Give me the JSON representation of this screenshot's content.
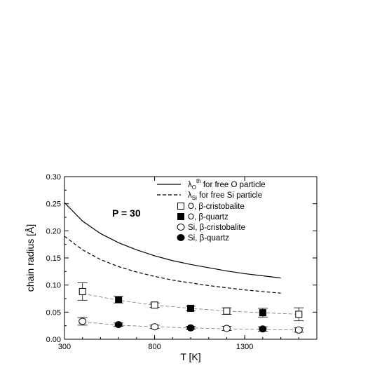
{
  "chart_data": {
    "type": "scatter",
    "xlabel": "T [K]",
    "ylabel": "chain radius [Å]",
    "xlim": [
      300,
      1700
    ],
    "ylim": [
      0.0,
      0.3
    ],
    "xticks": [
      {
        "value": 300,
        "label": "300"
      },
      {
        "value": 800,
        "label": "800"
      },
      {
        "value": 1300,
        "label": "1300"
      }
    ],
    "yticks": [
      {
        "value": 0.0,
        "label": "0.00"
      },
      {
        "value": 0.05,
        "label": "0.05"
      },
      {
        "value": 0.1,
        "label": "0.10"
      },
      {
        "value": 0.15,
        "label": "0.15"
      },
      {
        "value": 0.2,
        "label": "0.20"
      },
      {
        "value": 0.25,
        "label": "0.25"
      },
      {
        "value": 0.3,
        "label": "0.30"
      }
    ],
    "annotation": "P = 30",
    "legend_position": "top-right",
    "series": [
      {
        "name": "for free O particle",
        "lambda_sub": "O",
        "lambda_sup": "th",
        "kind": "line",
        "dash": "solid",
        "x": [
          300,
          400,
          500,
          600,
          700,
          800,
          900,
          1000,
          1100,
          1200,
          1300,
          1400,
          1500
        ],
        "y": [
          0.252,
          0.218,
          0.195,
          0.178,
          0.165,
          0.154,
          0.145,
          0.138,
          0.132,
          0.126,
          0.121,
          0.117,
          0.113
        ]
      },
      {
        "name": "for free Si particle",
        "lambda_sub": "Si",
        "lambda_sup": "",
        "kind": "line",
        "dash": "dashed",
        "x": [
          300,
          400,
          500,
          600,
          700,
          800,
          900,
          1000,
          1100,
          1200,
          1300,
          1400,
          1500
        ],
        "y": [
          0.19,
          0.165,
          0.147,
          0.134,
          0.124,
          0.116,
          0.109,
          0.104,
          0.099,
          0.095,
          0.091,
          0.088,
          0.085
        ]
      },
      {
        "name": "O, β-cristobalite",
        "kind": "marker",
        "marker": "square-open",
        "x": [
          400,
          800,
          1200,
          1600
        ],
        "y": [
          0.088,
          0.063,
          0.052,
          0.046
        ],
        "err": [
          0.016,
          0.004,
          0.006,
          0.012
        ]
      },
      {
        "name": "O, β-quartz",
        "kind": "marker",
        "marker": "square-filled",
        "x": [
          600,
          1000,
          1400
        ],
        "y": [
          0.073,
          0.057,
          0.049
        ],
        "err": [
          0.006,
          0.004,
          0.008
        ]
      },
      {
        "name": "Si, β-cristobalite",
        "kind": "marker",
        "marker": "circle-open",
        "x": [
          400,
          800,
          1200,
          1600
        ],
        "y": [
          0.033,
          0.023,
          0.02,
          0.017
        ],
        "err": [
          0.007,
          0.003,
          0.004,
          0.004
        ]
      },
      {
        "name": "Si, β-quartz",
        "kind": "marker",
        "marker": "circle-filled",
        "x": [
          600,
          1000,
          1400
        ],
        "y": [
          0.027,
          0.021,
          0.019
        ],
        "err": [
          0.003,
          0.003,
          0.004
        ]
      }
    ],
    "fit_lines": [
      {
        "for": "O",
        "x": [
          400,
          600,
          800,
          1000,
          1200,
          1400,
          1600
        ],
        "y": [
          0.084,
          0.072,
          0.063,
          0.057,
          0.052,
          0.049,
          0.046
        ]
      },
      {
        "for": "Si",
        "x": [
          400,
          600,
          800,
          1000,
          1200,
          1400,
          1600
        ],
        "y": [
          0.032,
          0.026,
          0.023,
          0.021,
          0.019,
          0.018,
          0.017
        ]
      }
    ]
  }
}
